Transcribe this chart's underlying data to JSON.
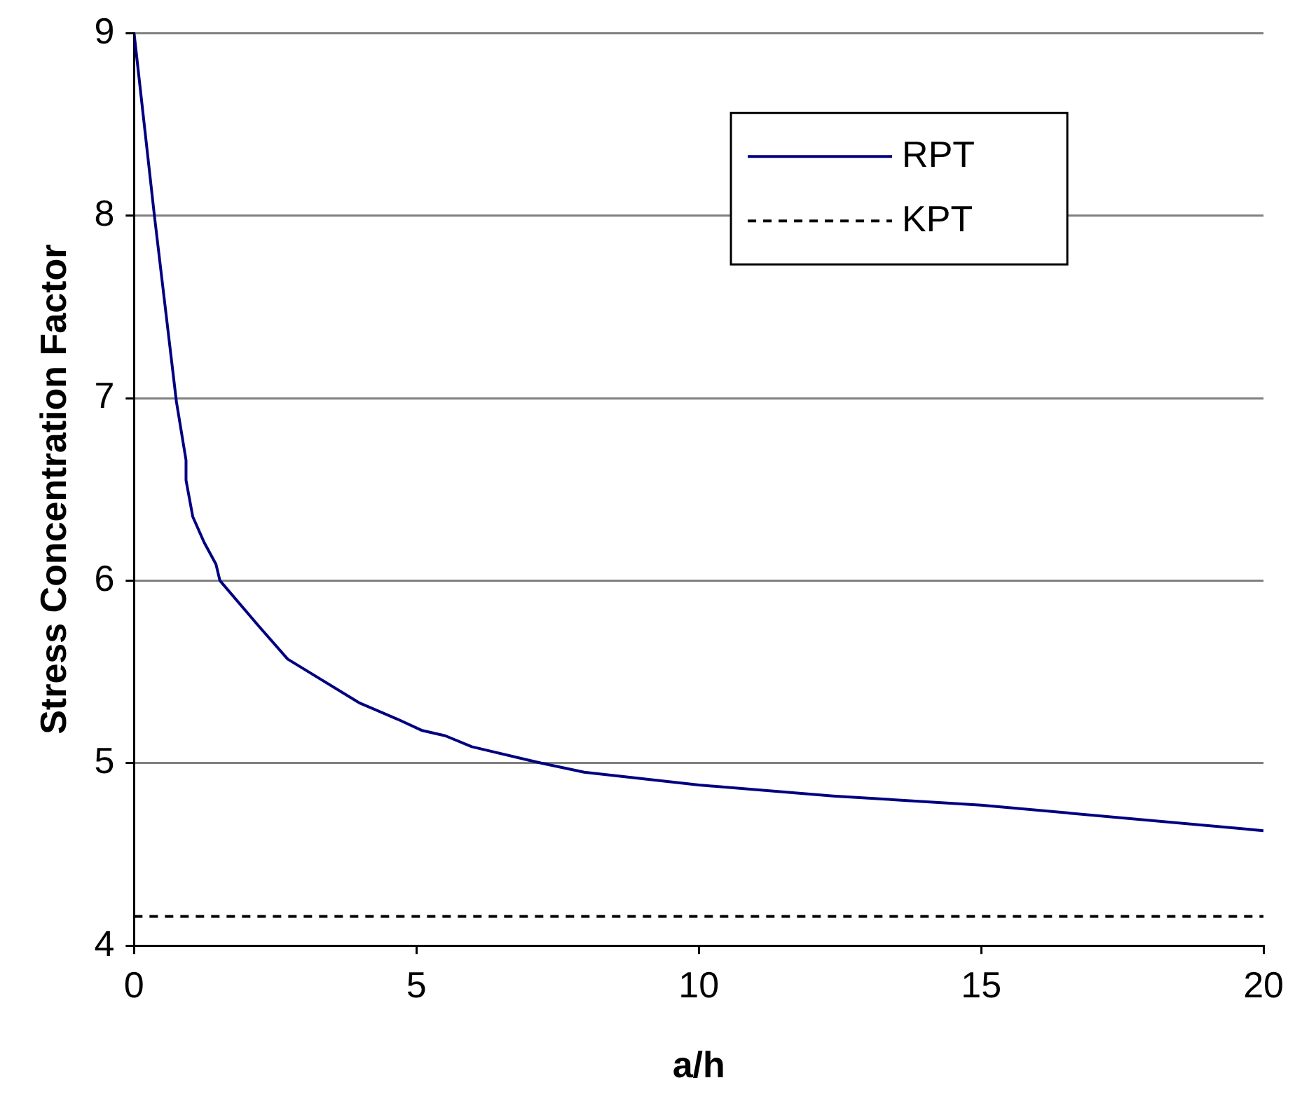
{
  "chart_data": {
    "type": "line",
    "xlabel": "a/h",
    "ylabel": "Stress Concentration Factor",
    "xlim": [
      0,
      20
    ],
    "xticks": [
      0,
      5,
      10,
      15,
      20
    ],
    "ylim": [
      4,
      9
    ],
    "yticks": [
      4,
      5,
      6,
      7,
      8,
      9
    ],
    "grid": "y",
    "legend": "top right",
    "marker": "none",
    "series": [
      {
        "name": "RPT",
        "color": "#000080",
        "line_style": "solid",
        "x": [
          0,
          0.36,
          0.75,
          0.92,
          0.92,
          1.04,
          1.24,
          1.45,
          1.52,
          2.21,
          2.72,
          3.99,
          4.67,
          5.09,
          5.51,
          5.98,
          7.21,
          7.97,
          10,
          12.38,
          15,
          20
        ],
        "values": [
          9,
          8,
          6.98,
          6.66,
          6.55,
          6.35,
          6.21,
          6.09,
          6.0,
          5.75,
          5.57,
          5.33,
          5.24,
          5.18,
          5.15,
          5.09,
          5.0,
          4.95,
          4.88,
          4.82,
          4.77,
          4.63
        ]
      },
      {
        "name": "KPT",
        "color": "#000000",
        "line_style": "dashed",
        "x": [
          0,
          20
        ],
        "values": [
          4.16,
          4.16
        ]
      }
    ]
  }
}
